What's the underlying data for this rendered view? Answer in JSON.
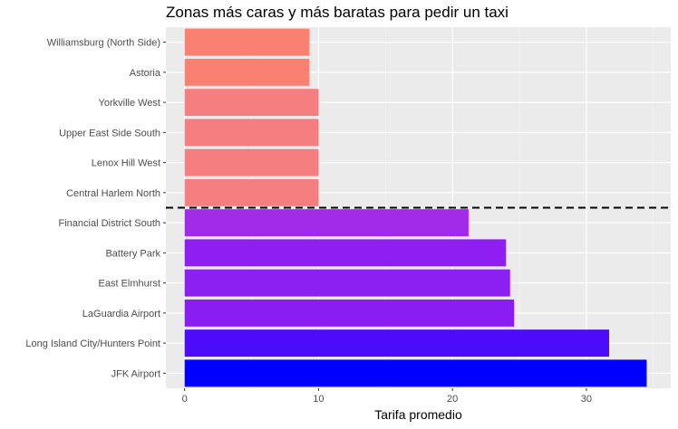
{
  "chart_data": {
    "type": "bar",
    "orientation": "horizontal",
    "title": "Zonas más caras y más baratas para pedir un taxi",
    "xlabel": "Tarifa promedio",
    "ylabel": "",
    "xlim": [
      -1.4,
      36.3
    ],
    "xticks": [
      0,
      10,
      20,
      30
    ],
    "grid": true,
    "categories": [
      "Williamsburg (North Side)",
      "Astoria",
      "Yorkville West",
      "Upper East Side South",
      "Lenox Hill West",
      "Central Harlem North",
      "Financial District South",
      "Battery Park",
      "East Elmhurst",
      "LaGuardia Airport",
      "Long Island City/Hunters Point",
      "JFK Airport"
    ],
    "values": [
      9.3,
      9.3,
      10.0,
      10.0,
      10.0,
      10.0,
      21.2,
      24.0,
      24.3,
      24.6,
      31.7,
      34.5
    ],
    "colors": [
      "#FA8072",
      "#FA8072",
      "#F57F80",
      "#F57F80",
      "#F57F80",
      "#F57F80",
      "#A22BEA",
      "#8E1EF2",
      "#8C1FF2",
      "#8A1EF2",
      "#4D0BFB",
      "#0000FF"
    ],
    "divider": {
      "between": [
        "Central Harlem North",
        "Financial District South"
      ],
      "style": "dashed",
      "color": "#000000"
    },
    "legend": "none"
  }
}
